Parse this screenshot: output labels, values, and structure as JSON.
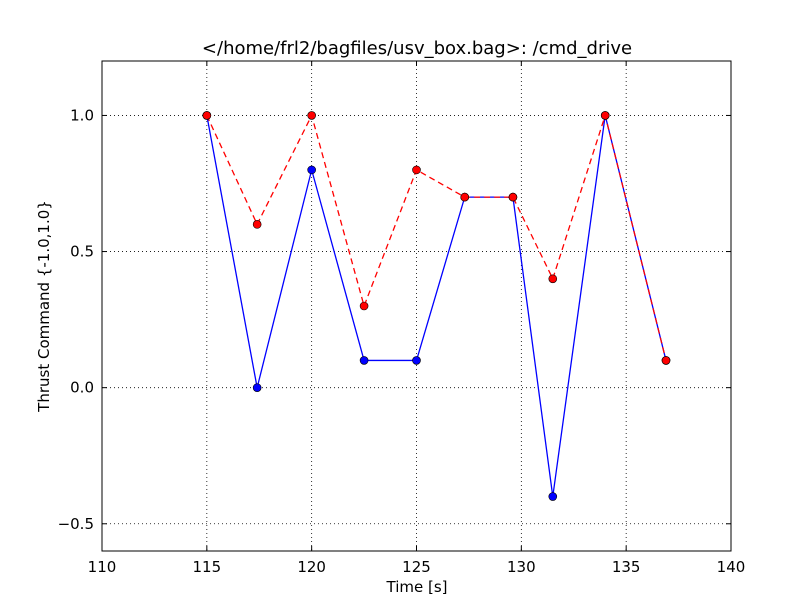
{
  "chart_data": {
    "type": "line",
    "title": "</home/frl2/bagfiles/usv_box.bag>: /cmd_drive",
    "xlabel": "Time [s]",
    "ylabel": "Thrust Command {-1.0,1.0}",
    "xlim": [
      110,
      140
    ],
    "ylim": [
      -0.6,
      1.2
    ],
    "xticks": [
      110,
      115,
      120,
      125,
      130,
      135,
      140
    ],
    "xtick_labels": [
      "110",
      "115",
      "120",
      "125",
      "130",
      "135",
      "140"
    ],
    "yticks": [
      -0.5,
      0.0,
      0.5,
      1.0
    ],
    "ytick_labels": [
      "−0.5",
      "0.0",
      "0.5",
      "1.0"
    ],
    "grid": true,
    "legend": "none",
    "series": [
      {
        "color": "#0000ff",
        "linestyle": "solid",
        "marker": "circle",
        "x": [
          115.0,
          117.4,
          120.0,
          122.5,
          125.0,
          127.3,
          129.6,
          131.5,
          134.0,
          136.9
        ],
        "y": [
          1.0,
          0.0,
          0.8,
          0.1,
          0.1,
          0.7,
          0.7,
          -0.4,
          1.0,
          0.1
        ]
      },
      {
        "color": "#ff0000",
        "linestyle": "dashed",
        "marker": "circle",
        "x": [
          115.0,
          117.4,
          120.0,
          122.5,
          125.0,
          127.3,
          129.6,
          131.5,
          134.0,
          136.9
        ],
        "y": [
          1.0,
          0.6,
          1.0,
          0.3,
          0.8,
          0.7,
          0.7,
          0.4,
          1.0,
          0.1
        ]
      }
    ]
  }
}
